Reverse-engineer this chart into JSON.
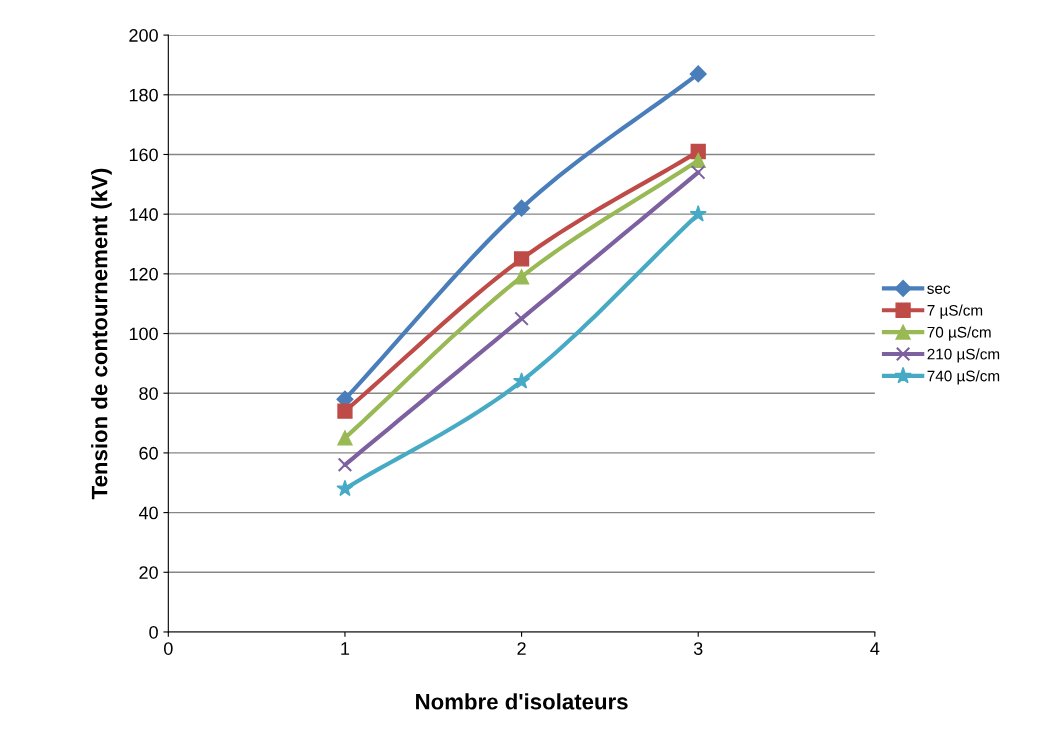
{
  "chart_data": {
    "type": "line",
    "xlabel": "Nombre d'isolateurs",
    "ylabel": "Tension de contournement (kV)",
    "x": [
      1,
      2,
      3
    ],
    "series": [
      {
        "name": "sec",
        "color": "#4a7ebb",
        "marker": "diamond",
        "values": [
          78,
          142,
          187
        ]
      },
      {
        "name": "7 µS/cm",
        "color": "#be4b48",
        "marker": "square",
        "values": [
          74,
          125,
          161
        ]
      },
      {
        "name": "70 µS/cm",
        "color": "#98b954",
        "marker": "triangle",
        "values": [
          65,
          119,
          158
        ]
      },
      {
        "name": "210 µS/cm",
        "color": "#7d60a0",
        "marker": "cross",
        "values": [
          56,
          105,
          154
        ]
      },
      {
        "name": "740 µS/cm",
        "color": "#46aac5",
        "marker": "star",
        "values": [
          48,
          84,
          140
        ]
      }
    ],
    "xlim": [
      0,
      4
    ],
    "xticks": [
      0,
      1,
      2,
      3,
      4
    ],
    "ylim": [
      0,
      200
    ],
    "yticks": [
      0,
      20,
      40,
      60,
      80,
      100,
      120,
      140,
      160,
      180,
      200
    ],
    "grid": "y",
    "legend": "right",
    "line_style": "solid"
  }
}
